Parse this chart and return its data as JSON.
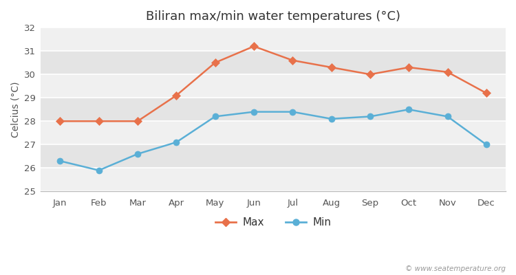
{
  "title": "Biliran max/min water temperatures (°C)",
  "ylabel": "Celcius (°C)",
  "months": [
    "Jan",
    "Feb",
    "Mar",
    "Apr",
    "May",
    "Jun",
    "Jul",
    "Aug",
    "Sep",
    "Oct",
    "Nov",
    "Dec"
  ],
  "max_temps": [
    28.0,
    28.0,
    28.0,
    29.1,
    30.5,
    31.2,
    30.6,
    30.3,
    30.0,
    30.3,
    30.1,
    29.2
  ],
  "min_temps": [
    26.3,
    25.9,
    26.6,
    27.1,
    28.2,
    28.4,
    28.4,
    28.1,
    28.2,
    28.5,
    28.2,
    27.0
  ],
  "max_color": "#e8714a",
  "min_color": "#5aafd6",
  "background_color": "#ffffff",
  "plot_bg_light": "#f0f0f0",
  "plot_bg_dark": "#e4e4e4",
  "grid_color": "#ffffff",
  "ylim": [
    25,
    32
  ],
  "yticks": [
    25,
    26,
    27,
    28,
    29,
    30,
    31,
    32
  ],
  "legend_labels": [
    "Max",
    "Min"
  ],
  "watermark": "© www.seatemperature.org",
  "title_fontsize": 13,
  "axis_label_fontsize": 10,
  "tick_fontsize": 9.5
}
